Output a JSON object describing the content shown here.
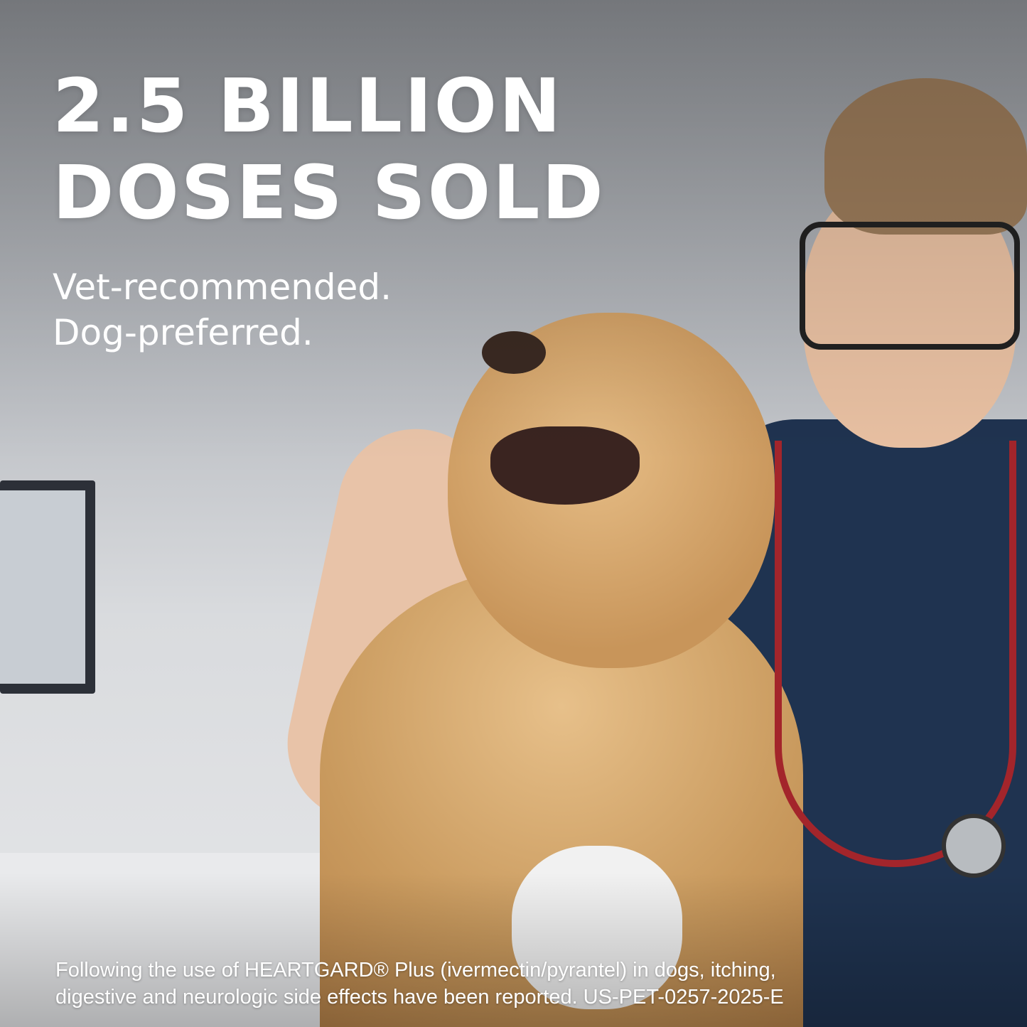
{
  "headline": {
    "line1": "2.5 BILLION",
    "line2": "DOSES SOLD"
  },
  "subheadline": {
    "line1": "Vet-recommended.",
    "line2": "Dog-preferred."
  },
  "disclaimer": {
    "line1": "Following the use of HEARTGARD® Plus (ivermectin/pyrantel) in dogs, itching,",
    "line2": "digestive and neurologic side effects have been reported. US-PET-0257-2025-E"
  },
  "colors": {
    "text": "#ffffff",
    "scrubs": "#1f3350",
    "dog_fur": "#c99a5e",
    "stethoscope": "#a3252b"
  }
}
